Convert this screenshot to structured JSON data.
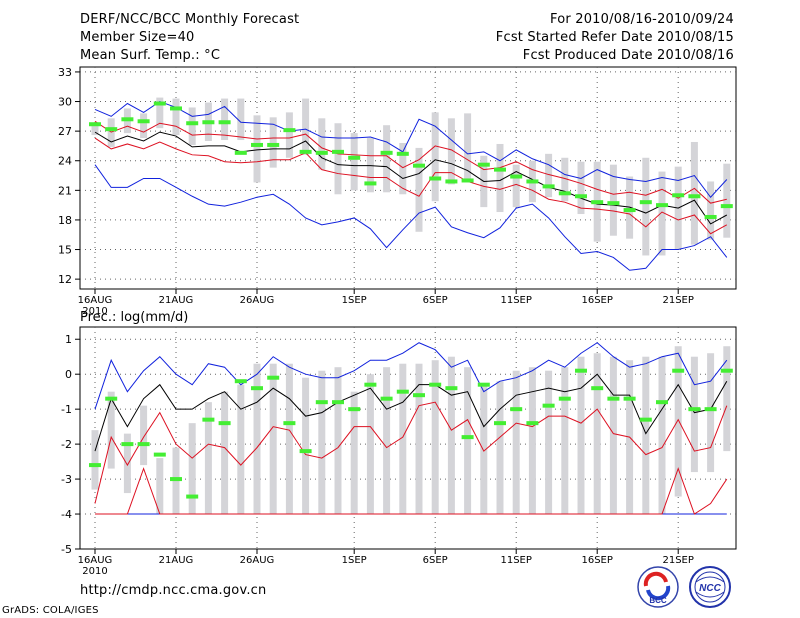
{
  "header": {
    "title": "DERF/NCC/BCC Monthly Forecast",
    "member_size": "Member Size=40",
    "variable": "Mean Surf. Temp.: °C",
    "period": "For 2010/08/16-2010/09/24",
    "fcst_started": "Fcst Started Refer Date 2010/08/15",
    "fcst_produced": "Fcst Produced Date 2010/08/16"
  },
  "footer": {
    "url": "http://cmdp.ncc.cma.gov.cn",
    "grads": "GrADS: COLA/IGES",
    "logo_bcc": "BCC",
    "logo_ncc": "NCC"
  },
  "colors": {
    "box": "#d4d4d8",
    "green": "#44ee33",
    "black": "#000000",
    "red": "#dd1122",
    "blue": "#1122dd",
    "grid": "#666666"
  },
  "chart_data": [
    {
      "type": "box-envelope",
      "title": "Mean Surf. Temp.: °C",
      "xlabel": "",
      "ylabel": "°C",
      "ylim": [
        11,
        33.5
      ],
      "yticks": [
        12,
        15,
        18,
        21,
        24,
        27,
        30,
        33
      ],
      "xtick_labels": [
        "16AUG",
        "21AUG",
        "26AUG",
        "1SEP",
        "6SEP",
        "11SEP",
        "16SEP",
        "21SEP"
      ],
      "xtick_index": [
        0,
        5,
        10,
        16,
        21,
        26,
        31,
        36
      ],
      "year_label": "2010",
      "days": 40,
      "series": [
        {
          "name": "box_low",
          "values": [
            26.6,
            25.4,
            26.8,
            26.3,
            27.3,
            26.6,
            25.6,
            26.0,
            26.1,
            26.1,
            21.8,
            23.3,
            24.3,
            24.6,
            23.1,
            20.6,
            21.0,
            20.8,
            20.8,
            20.6,
            16.8,
            19.9,
            21.6,
            21.8,
            19.3,
            18.8,
            19.3,
            19.8,
            20.3,
            19.9,
            18.6,
            15.8,
            16.4,
            16.1,
            14.4,
            14.4,
            15.0,
            15.5,
            16.0,
            16.2
          ]
        },
        {
          "name": "box_high",
          "values": [
            27.8,
            28.3,
            29.3,
            28.8,
            30.4,
            30.3,
            29.4,
            29.9,
            30.3,
            30.3,
            28.6,
            28.4,
            28.9,
            30.3,
            28.3,
            27.8,
            26.8,
            26.3,
            27.6,
            25.8,
            25.3,
            28.9,
            28.3,
            28.8,
            24.5,
            25.7,
            23.6,
            24.0,
            24.7,
            24.3,
            23.9,
            23.9,
            23.6,
            22.4,
            24.3,
            22.9,
            23.4,
            25.9,
            21.9,
            23.7
          ]
        },
        {
          "name": "ensemble_max",
          "values": [
            29.2,
            28.5,
            29.8,
            28.9,
            30.0,
            29.4,
            28.5,
            28.7,
            29.5,
            27.9,
            27.8,
            27.7,
            27.0,
            27.2,
            26.4,
            26.3,
            26.3,
            26.4,
            25.9,
            24.9,
            28.2,
            27.5,
            26.1,
            24.7,
            24.9,
            24.0,
            25.1,
            24.2,
            23.6,
            22.6,
            22.2,
            23.1,
            22.4,
            22.1,
            21.9,
            22.3,
            22.0,
            22.5,
            20.3,
            22.1
          ]
        },
        {
          "name": "plus_sd",
          "values": [
            28.0,
            26.9,
            27.5,
            26.9,
            27.8,
            27.5,
            26.6,
            26.7,
            26.6,
            26.4,
            26.2,
            26.3,
            26.3,
            26.7,
            25.3,
            24.7,
            24.6,
            24.5,
            24.5,
            23.3,
            24.1,
            25.5,
            25.1,
            24.1,
            23.1,
            23.3,
            23.9,
            23.1,
            22.6,
            22.2,
            21.7,
            21.1,
            20.6,
            20.8,
            20.5,
            21.1,
            20.2,
            21.2,
            19.7,
            20.1
          ]
        },
        {
          "name": "ensemble_mean",
          "values": [
            26.9,
            25.9,
            26.5,
            26.0,
            26.9,
            26.5,
            25.4,
            25.5,
            25.5,
            24.9,
            25.1,
            25.2,
            25.2,
            26.0,
            24.3,
            23.6,
            23.5,
            23.5,
            23.4,
            22.2,
            22.7,
            24.1,
            23.7,
            23.0,
            21.9,
            22.0,
            22.9,
            22.1,
            21.3,
            20.9,
            20.2,
            19.6,
            19.5,
            19.3,
            18.7,
            19.5,
            19.2,
            20.0,
            17.6,
            18.5
          ]
        },
        {
          "name": "minus_sd",
          "values": [
            26.3,
            25.2,
            25.7,
            25.2,
            25.9,
            25.2,
            24.6,
            24.5,
            23.9,
            23.8,
            23.9,
            24.1,
            24.1,
            24.8,
            23.1,
            22.7,
            22.5,
            22.3,
            22.3,
            21.2,
            20.4,
            22.8,
            22.8,
            21.9,
            21.4,
            21.1,
            21.6,
            21.0,
            20.1,
            19.8,
            19.2,
            19.1,
            18.9,
            18.6,
            17.3,
            18.8,
            18.0,
            18.5,
            16.6,
            17.5
          ]
        },
        {
          "name": "ensemble_min",
          "values": [
            23.6,
            21.3,
            21.3,
            22.2,
            22.2,
            21.3,
            20.4,
            19.6,
            19.4,
            19.8,
            20.3,
            20.6,
            19.6,
            18.2,
            17.5,
            17.8,
            18.2,
            17.1,
            15.2,
            17.0,
            18.7,
            19.3,
            17.3,
            16.7,
            16.2,
            17.2,
            19.2,
            19.6,
            18.2,
            16.3,
            14.6,
            14.8,
            14.2,
            12.9,
            13.1,
            15.0,
            15.0,
            15.4,
            16.3,
            14.2
          ]
        },
        {
          "name": "observed_bar",
          "values": [
            27.7,
            27.2,
            28.2,
            28.0,
            29.8,
            29.3,
            27.8,
            27.9,
            27.9,
            24.8,
            25.6,
            25.6,
            27.1,
            24.9,
            24.8,
            24.9,
            24.3,
            21.7,
            24.8,
            24.7,
            23.5,
            22.2,
            21.9,
            22.0,
            23.6,
            23.1,
            22.4,
            21.9,
            21.4,
            20.7,
            20.4,
            19.8,
            19.7,
            19.0,
            19.8,
            19.5,
            20.5,
            20.4,
            18.3,
            19.4
          ]
        }
      ]
    },
    {
      "type": "box-envelope",
      "title": "Prec.: log(mm/d)",
      "xlabel": "",
      "ylabel": "log(mm/d)",
      "ylim": [
        -5,
        1.35
      ],
      "yticks": [
        -5,
        -4,
        -3,
        -2,
        -1,
        0,
        1
      ],
      "xtick_labels": [
        "16AUG",
        "21AUG",
        "26AUG",
        "1SEP",
        "6SEP",
        "11SEP",
        "16SEP",
        "21SEP"
      ],
      "xtick_index": [
        0,
        5,
        10,
        16,
        21,
        26,
        31,
        36
      ],
      "year_label": "2010",
      "days": 40,
      "series": [
        {
          "name": "box_low",
          "values": [
            -3.3,
            -2.7,
            -3.4,
            -2.6,
            -4.0,
            -4.0,
            -4.0,
            -4.0,
            -4.0,
            -4.0,
            -4.0,
            -4.0,
            -4.0,
            -4.0,
            -4.0,
            -4.0,
            -4.0,
            -4.0,
            -4.0,
            -4.0,
            -4.0,
            -4.0,
            -4.0,
            -4.0,
            -4.0,
            -4.0,
            -4.0,
            -4.0,
            -4.0,
            -4.0,
            -4.0,
            -4.0,
            -4.0,
            -4.0,
            -4.0,
            -4.0,
            -3.5,
            -2.8,
            -2.8,
            -2.2
          ]
        },
        {
          "name": "box_high",
          "values": [
            -1.6,
            -0.5,
            -1.7,
            -0.9,
            -2.4,
            -2.1,
            -1.4,
            -0.8,
            -0.5,
            -0.3,
            0.3,
            0.3,
            0.3,
            -0.1,
            0.1,
            0.2,
            -0.5,
            0.0,
            0.2,
            0.3,
            0.3,
            0.4,
            0.5,
            0.2,
            -0.3,
            -0.2,
            0.1,
            0.2,
            0.1,
            0.2,
            0.5,
            0.6,
            0.5,
            0.4,
            0.5,
            0.5,
            0.8,
            0.5,
            0.6,
            0.8
          ]
        },
        {
          "name": "ensemble_max",
          "values": [
            -1.0,
            0.4,
            -0.5,
            0.1,
            0.5,
            0.0,
            -0.3,
            0.3,
            0.2,
            -0.3,
            0.0,
            0.5,
            0.2,
            0.0,
            -0.1,
            -0.1,
            0.1,
            0.4,
            0.4,
            0.6,
            0.9,
            0.7,
            0.2,
            0.4,
            -0.5,
            -0.2,
            -0.1,
            0.1,
            0.4,
            0.2,
            0.6,
            0.9,
            0.5,
            0.2,
            0.3,
            0.5,
            0.6,
            -0.3,
            -0.2,
            0.4
          ]
        },
        {
          "name": "ensemble_mean",
          "values": [
            -2.2,
            -0.7,
            -1.5,
            -0.7,
            -0.3,
            -1.0,
            -1.0,
            -0.7,
            -0.5,
            -1.0,
            -0.8,
            -0.4,
            -0.7,
            -1.2,
            -1.1,
            -0.8,
            -0.6,
            -0.4,
            -1.0,
            -0.8,
            -0.3,
            -0.3,
            -0.6,
            -0.5,
            -1.5,
            -1.0,
            -0.6,
            -0.5,
            -0.4,
            -0.5,
            -0.4,
            0.0,
            -0.6,
            -0.6,
            -1.7,
            -1.0,
            -0.3,
            -1.1,
            -1.0,
            -0.2
          ]
        },
        {
          "name": "minus_sd",
          "values": [
            -3.7,
            -1.8,
            -2.6,
            -1.8,
            -1.1,
            -2.0,
            -2.4,
            -2.0,
            -2.1,
            -2.6,
            -2.1,
            -1.5,
            -1.6,
            -2.3,
            -2.4,
            -2.1,
            -1.5,
            -1.5,
            -2.1,
            -1.8,
            -0.9,
            -0.8,
            -1.6,
            -1.3,
            -2.2,
            -1.8,
            -1.4,
            -1.5,
            -1.2,
            -1.2,
            -1.4,
            -1.0,
            -1.7,
            -1.8,
            -2.3,
            -2.1,
            -1.3,
            -2.2,
            -2.1,
            -0.9
          ]
        },
        {
          "name": "lower_red",
          "values": [
            -4.0,
            -4.0,
            -4.0,
            -2.7,
            -4.0,
            -4.0,
            -4.0,
            -4.0,
            -4.0,
            -4.0,
            -4.0,
            -4.0,
            -4.0,
            -4.0,
            -4.0,
            -4.0,
            -4.0,
            -4.0,
            -4.0,
            -4.0,
            -4.0,
            -4.0,
            -4.0,
            -4.0,
            -4.0,
            -4.0,
            -4.0,
            -4.0,
            -4.0,
            -4.0,
            -4.0,
            -4.0,
            -4.0,
            -4.0,
            -4.0,
            -4.0,
            -2.7,
            -4.0,
            -3.7,
            -3.0
          ]
        },
        {
          "name": "ensemble_min",
          "values": [
            -4.0,
            -4.0,
            -4.0,
            -4.0,
            -4.0,
            -4.0,
            -4.0,
            -4.0,
            -4.0,
            -4.0,
            -4.0,
            -4.0,
            -4.0,
            -4.0,
            -4.0,
            -4.0,
            -4.0,
            -4.0,
            -4.0,
            -4.0,
            -4.0,
            -4.0,
            -4.0,
            -4.0,
            -4.0,
            -4.0,
            -4.0,
            -4.0,
            -4.0,
            -4.0,
            -4.0,
            -4.0,
            -4.0,
            -4.0,
            -4.0,
            -4.0,
            -4.0,
            -4.0,
            -4.0,
            -4.0
          ]
        },
        {
          "name": "observed_bar",
          "values": [
            -2.6,
            -0.7,
            -2.0,
            -2.0,
            -2.3,
            -3.0,
            -3.5,
            -1.3,
            -1.4,
            -0.2,
            -0.4,
            -0.1,
            -1.4,
            -2.2,
            -0.8,
            -0.8,
            -1.0,
            -0.3,
            -0.7,
            -0.5,
            -0.6,
            -0.3,
            -0.4,
            -1.8,
            -0.3,
            -1.4,
            -1.0,
            -1.4,
            -0.9,
            -0.7,
            0.1,
            -0.4,
            -0.7,
            -0.7,
            -1.3,
            -0.8,
            0.1,
            -1.0,
            -1.0,
            0.1
          ]
        }
      ]
    }
  ]
}
